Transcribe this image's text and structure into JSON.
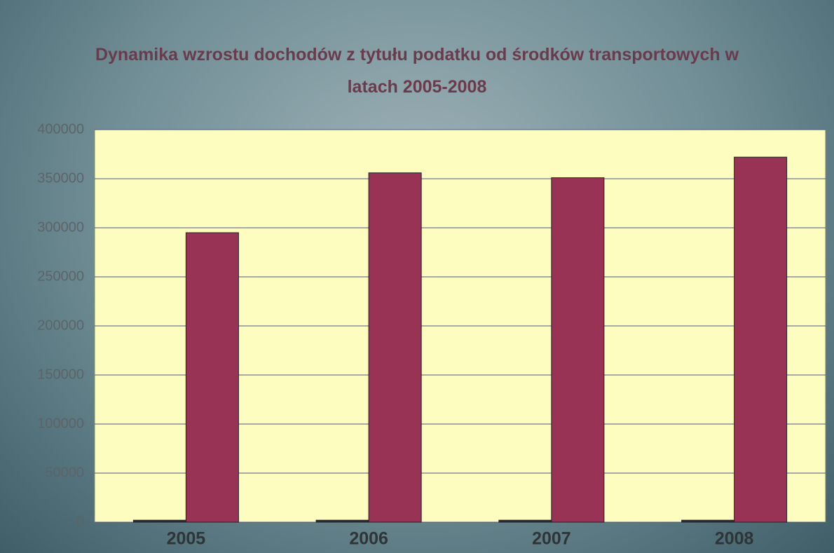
{
  "chart_data": {
    "type": "bar",
    "title": "Dynamika wzrostu dochodów z tytułu podatku od środków transportowych w latach 2005-2008",
    "categories": [
      "2005",
      "2006",
      "2007",
      "2008"
    ],
    "series": [
      {
        "color": "#2a2a3a",
        "values": [
          2005,
          2006,
          2007,
          2008
        ]
      },
      {
        "color": "#993355",
        "values": [
          295000,
          356000,
          351000,
          372000
        ]
      }
    ],
    "ylim": [
      0,
      400000
    ],
    "yticks": [
      0,
      50000,
      100000,
      150000,
      200000,
      250000,
      300000,
      350000,
      400000
    ],
    "grid": true
  }
}
